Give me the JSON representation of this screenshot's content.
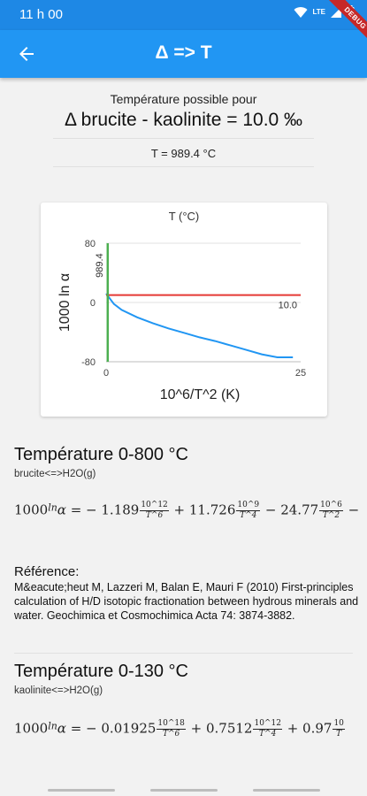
{
  "status": {
    "time": "11 h 00",
    "network": "LTE"
  },
  "appbar": {
    "title": "Δ => T",
    "debug_label": "DEBUG"
  },
  "result": {
    "subtitle": "Température possible pour",
    "headline": "Δ brucite - kaolinite = 10.0 ‰",
    "temperature": "T = 989.4 °C"
  },
  "chart_data": {
    "type": "line",
    "title": "T (°C)",
    "xlabel": "10^6/T^2 (K)",
    "ylabel": "1000 ln α",
    "xlim": [
      0,
      25
    ],
    "ylim": [
      -80,
      80
    ],
    "x_ticks": [
      "0",
      "25"
    ],
    "y_ticks": [
      "80",
      "0",
      "-80"
    ],
    "series": [
      {
        "color": "#2196f3",
        "x": [
          0,
          1,
          2,
          4,
          6,
          8,
          10,
          12,
          14,
          16,
          18,
          20,
          22,
          24
        ],
        "y": [
          12,
          -2,
          -10,
          -20,
          -28,
          -35,
          -41,
          -47,
          -52,
          -58,
          -64,
          -70,
          -74,
          -74
        ]
      },
      {
        "color": "#e53935",
        "x": [
          0,
          25
        ],
        "y": [
          10,
          10
        ]
      },
      {
        "color": "#4caf50",
        "x": [
          0.2,
          0.2
        ],
        "y": [
          -80,
          80
        ]
      }
    ],
    "annotations": {
      "hline_label": "10.0",
      "vline_label": "989.4"
    }
  },
  "sections": [
    {
      "title": "Température 0-800 °C",
      "subtitle": "brucite<=>H2O(g)",
      "formula": {
        "lhs": "1000",
        "ln": "ln",
        "alpha": "α",
        "eq": " = − 1.189",
        "f1n": "10^12",
        "f1d": "T^6",
        "t2": " + 11.726",
        "f2n": "10^9",
        "f2d": "T^4",
        "t3": " − 24.77",
        "f3n": "10^6",
        "f3d": "T^2",
        "t4": " −"
      }
    },
    {
      "title": "Température 0-130 °C",
      "subtitle": "kaolinite<=>H2O(g)",
      "formula": {
        "lhs": "1000",
        "ln": "ln",
        "alpha": "α",
        "eq": " = − 0.01925",
        "f1n": "10^18",
        "f1d": "T^6",
        "t2": " + 0.7512",
        "f2n": "10^12",
        "f2d": "T^4",
        "t3": " + 0.97",
        "f3n": "10",
        "f3d": "T"
      }
    }
  ],
  "reference": {
    "label": "Référence:",
    "text": "M&eacute;heut M, Lazzeri M, Balan E, Mauri F (2010) First-principles calculation of H/D isotopic fractionation between hydrous minerals and water. Geochimica et Cosmochimica Acta 74: 3874-3882."
  }
}
